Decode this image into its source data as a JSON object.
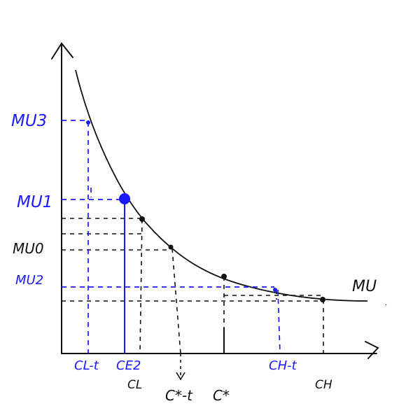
{
  "colors": {
    "ink": "#111111",
    "blue": "#1a1aff"
  },
  "curve_label": "MU",
  "y_labels": {
    "mu3": "MU3",
    "mu1": "MU1",
    "mu0": "MU0",
    "mu2": "MU2"
  },
  "x_labels": {
    "cl_minus_t": "CL-t",
    "ce2": "CE2",
    "cl": "CL",
    "cstar_minus_t": "C*-t",
    "cstar": "C*",
    "ch_minus_t": "CH-t",
    "ch": "CH"
  }
}
